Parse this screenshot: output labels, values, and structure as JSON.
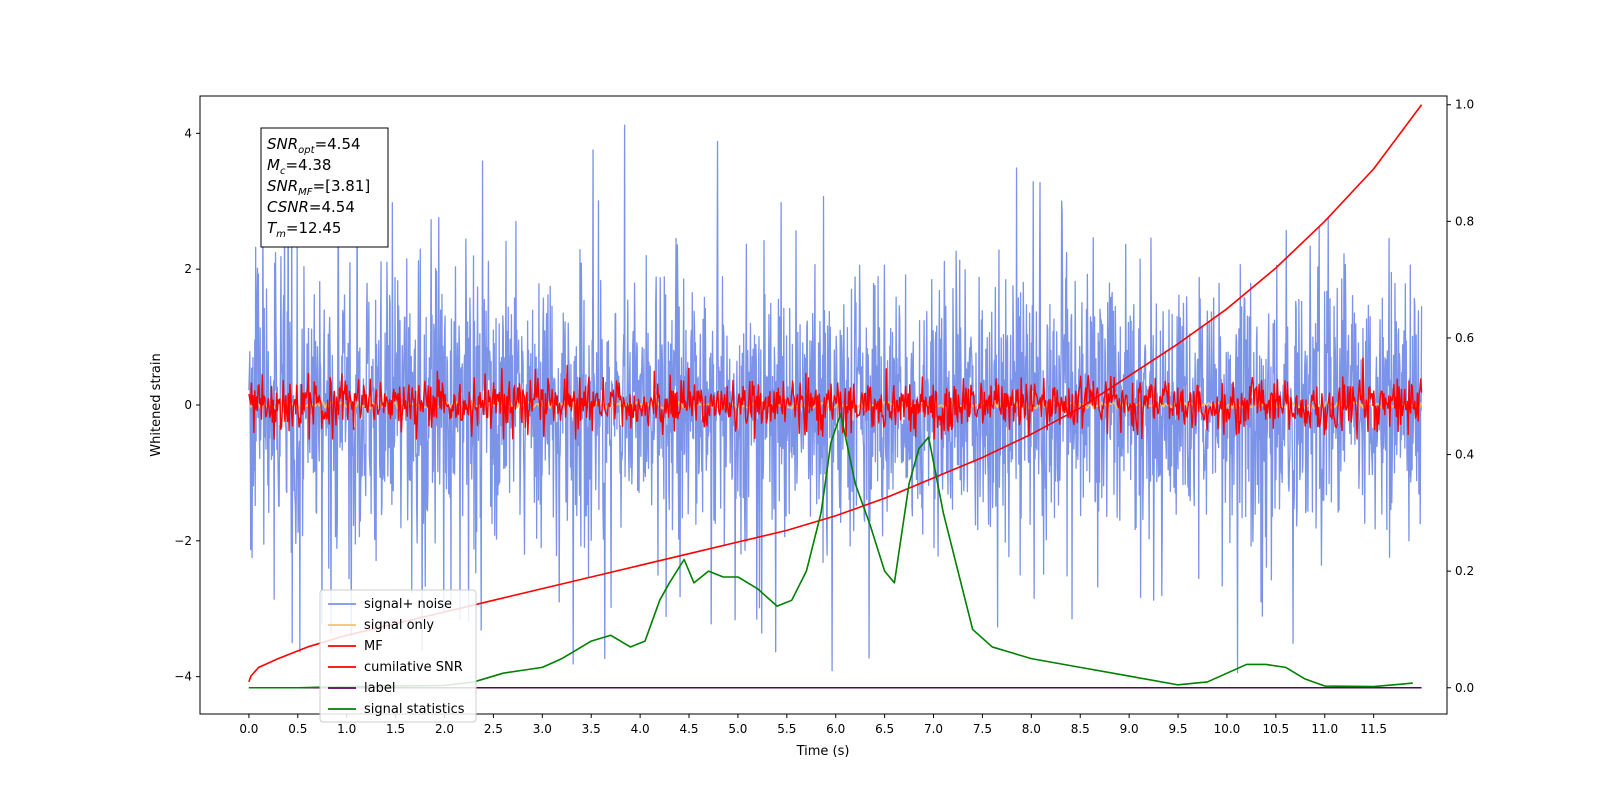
{
  "chart_data": {
    "type": "line",
    "xlabel": "Time (s)",
    "ylabel": "Whitened strain",
    "xlim": [
      -0.5,
      12.25
    ],
    "ylim": [
      -4.55,
      4.55
    ],
    "y2lim": [
      -0.045,
      1.015
    ],
    "xticks": [
      0.0,
      0.5,
      1.0,
      1.5,
      2.0,
      2.5,
      3.0,
      3.5,
      4.0,
      4.5,
      5.0,
      5.5,
      6.0,
      6.5,
      7.0,
      7.5,
      8.0,
      8.5,
      9.0,
      9.5,
      10.0,
      10.5,
      11.0,
      11.5
    ],
    "xtick_labels": [
      "0.0",
      "0.5",
      "1.0",
      "1.5",
      "2.0",
      "2.5",
      "3.0",
      "3.5",
      "4.0",
      "4.5",
      "5.0",
      "5.5",
      "6.0",
      "6.5",
      "7.0",
      "7.5",
      "8.0",
      "8.5",
      "9.0",
      "9.5",
      "10.0",
      "10.5",
      "11.0",
      "11.5"
    ],
    "yticks": [
      -4,
      -2,
      0,
      2,
      4
    ],
    "ytick_labels": [
      "−4",
      "−2",
      "0",
      "2",
      "4"
    ],
    "y2ticks": [
      0.0,
      0.2,
      0.4,
      0.6,
      0.8,
      1.0
    ],
    "y2tick_labels": [
      "0.0",
      "0.2",
      "0.4",
      "0.6",
      "0.8",
      "1.0"
    ],
    "grid": false,
    "legend_position": "lower-left",
    "annotation": {
      "lines": [
        {
          "main": "SNR",
          "sub": "opt",
          "value": "=4.54"
        },
        {
          "main": "M",
          "sub": "c",
          "value": "=4.38"
        },
        {
          "main": "SNR",
          "sub": "MF",
          "value": "=[3.81]"
        },
        {
          "main": "CSNR",
          "sub": "",
          "value": "=4.54"
        },
        {
          "main": "T",
          "sub": "m",
          "value": "=12.45"
        }
      ]
    },
    "series": [
      {
        "name": "signal+ noise",
        "color": "#7b93e8",
        "axis": "left",
        "style": "noise",
        "t_range": [
          0,
          11.99
        ],
        "sigma": 1.0,
        "y_extent": [
          -4.1,
          4.12
        ]
      },
      {
        "name": "signal only",
        "color": "#f5c26b",
        "axis": "left",
        "style": "flat",
        "t_range": [
          0,
          11.99
        ],
        "amplitude": 0.05
      },
      {
        "name": "MF",
        "color": "#ff0000",
        "axis": "left",
        "style": "noise",
        "t_range": [
          0,
          11.99
        ],
        "sigma": 0.2,
        "y_extent": [
          -0.5,
          0.9
        ]
      },
      {
        "name": "cumilative SNR",
        "color": "#ff0000",
        "axis": "right",
        "style": "line",
        "x": [
          0,
          0.02,
          0.1,
          0.3,
          0.6,
          1.0,
          1.5,
          2.0,
          2.5,
          3.0,
          3.5,
          4.0,
          4.5,
          5.0,
          5.5,
          6.0,
          6.5,
          7.0,
          7.5,
          8.0,
          8.5,
          9.0,
          9.5,
          10.0,
          10.5,
          11.0,
          11.5,
          11.99
        ],
        "y": [
          0.01,
          0.02,
          0.035,
          0.05,
          0.07,
          0.09,
          0.11,
          0.13,
          0.15,
          0.17,
          0.19,
          0.21,
          0.23,
          0.25,
          0.27,
          0.295,
          0.325,
          0.36,
          0.395,
          0.435,
          0.48,
          0.535,
          0.59,
          0.65,
          0.72,
          0.8,
          0.89,
          1.0
        ]
      },
      {
        "name": "label",
        "color": "#5b005b",
        "axis": "right",
        "style": "line",
        "x": [
          0,
          11.99
        ],
        "y": [
          0.0,
          0.0
        ]
      },
      {
        "name": "signal statistics",
        "color": "#008000",
        "axis": "right",
        "style": "line",
        "x": [
          0,
          0.5,
          1.0,
          1.5,
          2.0,
          2.3,
          2.6,
          2.8,
          3.0,
          3.2,
          3.3,
          3.5,
          3.7,
          3.9,
          4.05,
          4.2,
          4.3,
          4.45,
          4.55,
          4.7,
          4.85,
          5.0,
          5.2,
          5.4,
          5.55,
          5.7,
          5.85,
          5.95,
          6.05,
          6.2,
          6.35,
          6.5,
          6.6,
          6.75,
          6.85,
          6.95,
          7.1,
          7.25,
          7.4,
          7.6,
          7.8,
          8.0,
          8.5,
          9.0,
          9.5,
          9.8,
          10.0,
          10.2,
          10.4,
          10.6,
          10.8,
          11.0,
          11.5,
          11.9
        ],
        "y": [
          0.0,
          0.0,
          0.002,
          0.003,
          0.004,
          0.01,
          0.025,
          0.03,
          0.035,
          0.05,
          0.06,
          0.08,
          0.09,
          0.07,
          0.08,
          0.15,
          0.18,
          0.22,
          0.18,
          0.2,
          0.19,
          0.19,
          0.17,
          0.14,
          0.15,
          0.2,
          0.3,
          0.42,
          0.47,
          0.35,
          0.28,
          0.2,
          0.18,
          0.35,
          0.41,
          0.43,
          0.3,
          0.2,
          0.1,
          0.07,
          0.06,
          0.05,
          0.035,
          0.02,
          0.005,
          0.01,
          0.025,
          0.04,
          0.04,
          0.035,
          0.015,
          0.003,
          0.002,
          0.008
        ]
      }
    ]
  }
}
